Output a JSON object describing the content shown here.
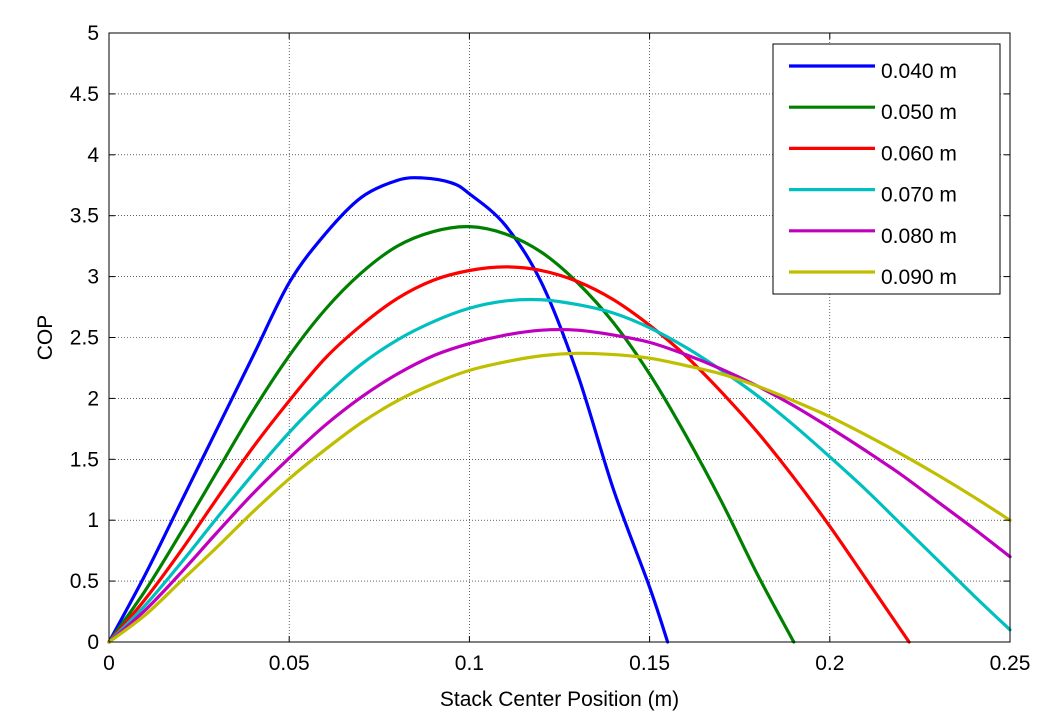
{
  "chart_data": {
    "type": "line",
    "title": "",
    "xlabel": "Stack Center Position (m)",
    "ylabel": "COP",
    "xlim": [
      0,
      0.25
    ],
    "ylim": [
      0,
      5
    ],
    "xticks": [
      0,
      0.05,
      0.1,
      0.15,
      0.2,
      0.25
    ],
    "xtick_labels": [
      "0",
      "0.05",
      "0.1",
      "0.15",
      "0.2",
      "0.25"
    ],
    "yticks": [
      0,
      0.5,
      1,
      1.5,
      2,
      2.5,
      3,
      3.5,
      4,
      4.5,
      5
    ],
    "ytick_labels": [
      "0",
      "0.5",
      "1",
      "1.5",
      "2",
      "2.5",
      "3",
      "3.5",
      "4",
      "4.5",
      "5"
    ],
    "grid": true,
    "legend_position": "top-right",
    "series": [
      {
        "name": "0.040 m",
        "color": "#0000ff",
        "x": [
          0,
          0.01,
          0.02,
          0.03,
          0.04,
          0.05,
          0.06,
          0.07,
          0.08,
          0.087,
          0.095,
          0.1,
          0.11,
          0.12,
          0.13,
          0.14,
          0.15,
          0.155
        ],
        "y": [
          0,
          0.55,
          1.15,
          1.75,
          2.35,
          2.95,
          3.35,
          3.65,
          3.79,
          3.81,
          3.77,
          3.68,
          3.42,
          2.95,
          2.2,
          1.25,
          0.45,
          0
        ]
      },
      {
        "name": "0.050 m",
        "color": "#008000",
        "x": [
          0,
          0.01,
          0.02,
          0.03,
          0.04,
          0.05,
          0.06,
          0.07,
          0.08,
          0.09,
          0.1,
          0.11,
          0.12,
          0.13,
          0.14,
          0.15,
          0.16,
          0.17,
          0.18,
          0.19
        ],
        "y": [
          0,
          0.42,
          0.9,
          1.4,
          1.9,
          2.35,
          2.73,
          3.03,
          3.25,
          3.37,
          3.41,
          3.35,
          3.2,
          2.95,
          2.62,
          2.2,
          1.7,
          1.15,
          0.55,
          0
        ]
      },
      {
        "name": "0.060 m",
        "color": "#ff0000",
        "x": [
          0,
          0.01,
          0.02,
          0.03,
          0.04,
          0.05,
          0.06,
          0.07,
          0.08,
          0.09,
          0.1,
          0.11,
          0.12,
          0.13,
          0.14,
          0.15,
          0.16,
          0.17,
          0.18,
          0.19,
          0.2,
          0.21,
          0.222
        ],
        "y": [
          0,
          0.35,
          0.75,
          1.18,
          1.6,
          1.98,
          2.33,
          2.6,
          2.82,
          2.97,
          3.05,
          3.08,
          3.05,
          2.96,
          2.81,
          2.6,
          2.35,
          2.05,
          1.72,
          1.35,
          0.95,
          0.52,
          0
        ]
      },
      {
        "name": "0.070 m",
        "color": "#00bfbf",
        "x": [
          0,
          0.01,
          0.02,
          0.03,
          0.04,
          0.05,
          0.06,
          0.07,
          0.08,
          0.09,
          0.1,
          0.11,
          0.12,
          0.13,
          0.14,
          0.15,
          0.16,
          0.17,
          0.18,
          0.19,
          0.2,
          0.21,
          0.22,
          0.23,
          0.24,
          0.25
        ],
        "y": [
          0,
          0.3,
          0.65,
          1.02,
          1.38,
          1.72,
          2.02,
          2.28,
          2.48,
          2.63,
          2.74,
          2.8,
          2.81,
          2.77,
          2.7,
          2.58,
          2.42,
          2.23,
          2.02,
          1.78,
          1.52,
          1.25,
          0.96,
          0.67,
          0.38,
          0.1
        ]
      },
      {
        "name": "0.080 m",
        "color": "#bf00bf",
        "x": [
          0,
          0.01,
          0.02,
          0.03,
          0.04,
          0.05,
          0.06,
          0.07,
          0.08,
          0.09,
          0.1,
          0.11,
          0.12,
          0.13,
          0.14,
          0.15,
          0.16,
          0.17,
          0.18,
          0.19,
          0.2,
          0.21,
          0.22,
          0.23,
          0.24,
          0.25
        ],
        "y": [
          0,
          0.26,
          0.57,
          0.9,
          1.22,
          1.51,
          1.78,
          2.01,
          2.2,
          2.35,
          2.45,
          2.52,
          2.56,
          2.56,
          2.52,
          2.46,
          2.36,
          2.24,
          2.1,
          1.94,
          1.76,
          1.57,
          1.37,
          1.15,
          0.93,
          0.7
        ]
      },
      {
        "name": "0.090 m",
        "color": "#bfbf00",
        "x": [
          0,
          0.01,
          0.02,
          0.03,
          0.04,
          0.05,
          0.06,
          0.07,
          0.08,
          0.09,
          0.1,
          0.11,
          0.12,
          0.13,
          0.14,
          0.15,
          0.16,
          0.17,
          0.18,
          0.19,
          0.2,
          0.21,
          0.22,
          0.23,
          0.24,
          0.25
        ],
        "y": [
          0,
          0.22,
          0.5,
          0.78,
          1.07,
          1.34,
          1.58,
          1.8,
          1.98,
          2.12,
          2.23,
          2.3,
          2.35,
          2.37,
          2.36,
          2.33,
          2.27,
          2.2,
          2.1,
          1.98,
          1.85,
          1.7,
          1.54,
          1.37,
          1.19,
          1.0
        ]
      }
    ]
  }
}
